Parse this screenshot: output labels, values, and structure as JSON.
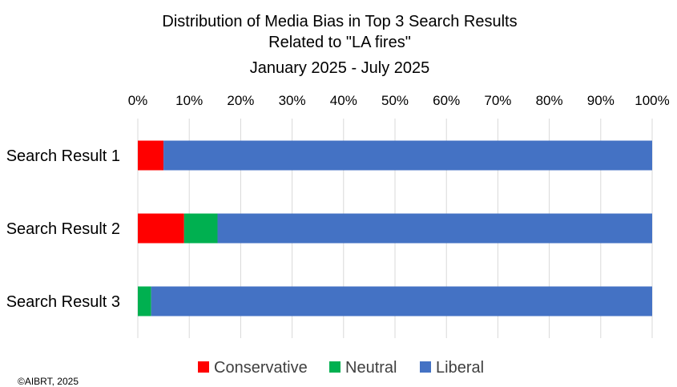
{
  "chart_data": {
    "type": "bar",
    "orientation": "horizontal",
    "stacked": "100%",
    "title": [
      "Distribution of Media Bias in Top 3 Search Results",
      "Related to \"LA fires\"",
      "January 2025 - July 2025"
    ],
    "categories": [
      "Search Result 1",
      "Search Result 2",
      "Search Result 3"
    ],
    "series": [
      {
        "name": "Conservative",
        "color": "#ff0000",
        "values": [
          5,
          9,
          0
        ]
      },
      {
        "name": "Neutral",
        "color": "#00b050",
        "values": [
          0,
          6.5,
          2.6
        ]
      },
      {
        "name": "Liberal",
        "color": "#4472c4",
        "values": [
          95,
          84.5,
          97.4
        ]
      }
    ],
    "xlim": [
      0,
      100
    ],
    "x_ticks": [
      "0%",
      "10%",
      "20%",
      "30%",
      "40%",
      "50%",
      "60%",
      "70%",
      "80%",
      "90%",
      "100%"
    ],
    "x_axis_position": "top",
    "grid": true,
    "legend_position": "bottom",
    "xlabel": "",
    "ylabel": ""
  },
  "footer": {
    "copyright": "©AIBRT, 2025"
  }
}
